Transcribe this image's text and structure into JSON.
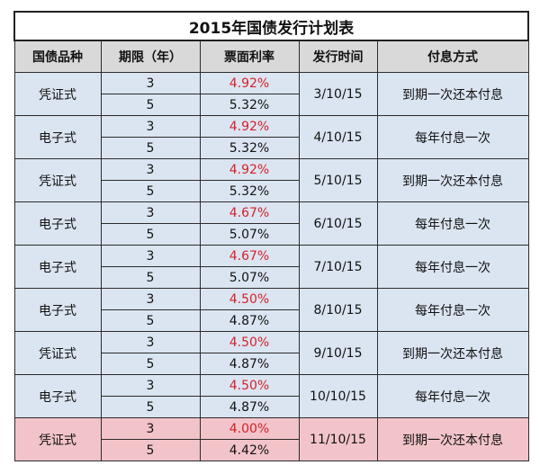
{
  "title": "2015年国债发行计划表",
  "headers": [
    "国债品种",
    "期限（年）",
    "票面利率",
    "发行时间",
    "付息方式"
  ],
  "rows": [
    {
      "type": "凭证式",
      "term_a": "3",
      "rate_a": "4.92%",
      "term_b": "5",
      "rate_b": "5.32%",
      "date": "3/10/15",
      "payment": "到期一次还本付息"
    },
    {
      "type": "电子式",
      "term_a": "3",
      "rate_a": "4.92%",
      "term_b": "5",
      "rate_b": "5.32%",
      "date": "4/10/15",
      "payment": "每年付息一次"
    },
    {
      "type": "凭证式",
      "term_a": "3",
      "rate_a": "4.92%",
      "term_b": "5",
      "rate_b": "5.32%",
      "date": "5/10/15",
      "payment": "到期一次还本付息"
    },
    {
      "type": "电子式",
      "term_a": "3",
      "rate_a": "4.67%",
      "term_b": "5",
      "rate_b": "5.07%",
      "date": "6/10/15",
      "payment": "每年付息一次"
    },
    {
      "type": "电子式",
      "term_a": "3",
      "rate_a": "4.67%",
      "term_b": "5",
      "rate_b": "5.07%",
      "date": "7/10/15",
      "payment": "每年付息一次"
    },
    {
      "type": "电子式",
      "term_a": "3",
      "rate_a": "4.50%",
      "term_b": "5",
      "rate_b": "4.87%",
      "date": "8/10/15",
      "payment": "每年付息一次"
    },
    {
      "type": "凭证式",
      "term_a": "3",
      "rate_a": "4.50%",
      "term_b": "5",
      "rate_b": "4.87%",
      "date": "9/10/15",
      "payment": "到期一次还本付息"
    },
    {
      "type": "电子式",
      "term_a": "3",
      "rate_a": "4.50%",
      "term_b": "5",
      "rate_b": "4.87%",
      "date": "10/10/15",
      "payment": "每年付息一次"
    },
    {
      "type": "凭证式",
      "term_a": "3",
      "rate_a": "4.00%",
      "term_b": "5",
      "rate_b": "4.42%",
      "date": "11/10/15",
      "payment": "到期一次还本付息"
    }
  ],
  "colors": {
    "highlight_rate": "#d4212b",
    "row_bg": "#dbe5f1",
    "header_bg": "#d9d9d9",
    "last_row_bg": "#f2c4c9"
  }
}
